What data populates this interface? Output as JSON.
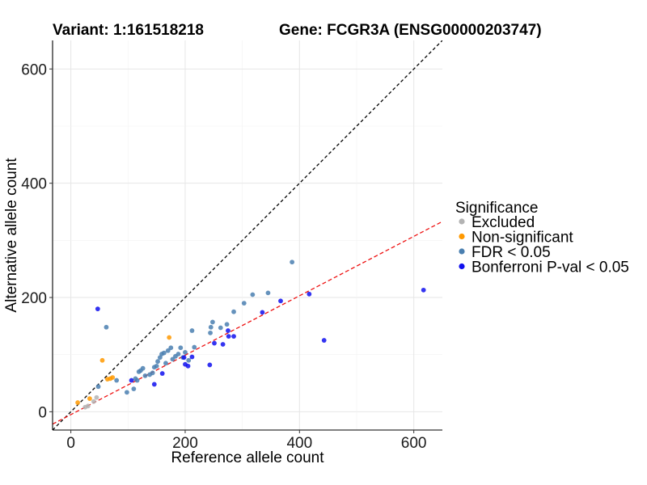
{
  "chart_data": {
    "type": "scatter",
    "title_left": "Variant: 1:161518218",
    "title_right": "Gene: FCGR3A (ENSG00000203747)",
    "xlabel": "Reference allele count",
    "ylabel": "Alternative allele count",
    "xlim": [
      -32,
      650
    ],
    "ylim": [
      -32,
      650
    ],
    "xticks": [
      0,
      200,
      400,
      600
    ],
    "yticks": [
      0,
      200,
      400,
      600
    ],
    "grid": true,
    "legend_position": "right",
    "legend_title": "Significance",
    "reference_lines": [
      {
        "name": "identity",
        "slope": 1,
        "intercept": 0,
        "color": "#000000",
        "dash": "4,3"
      },
      {
        "name": "fit",
        "slope": 0.52,
        "intercept": -5,
        "color": "#ee1111",
        "dash": "5,3"
      }
    ],
    "series": [
      {
        "name": "Excluded",
        "color": "#b3b3b3",
        "points": [
          [
            25,
            8
          ],
          [
            30,
            10
          ],
          [
            40,
            18
          ],
          [
            45,
            25
          ]
        ]
      },
      {
        "name": "Non-significant",
        "color": "#ff9900",
        "points": [
          [
            12,
            16
          ],
          [
            33,
            23
          ],
          [
            55,
            90
          ],
          [
            64,
            57
          ],
          [
            69,
            58
          ],
          [
            73,
            60
          ],
          [
            172,
            130
          ]
        ]
      },
      {
        "name": "FDR < 0.05",
        "color": "#4a7fb0",
        "points": [
          [
            48,
            44
          ],
          [
            62,
            148
          ],
          [
            80,
            55
          ],
          [
            98,
            34
          ],
          [
            110,
            40
          ],
          [
            113,
            58
          ],
          [
            116,
            55
          ],
          [
            119,
            70
          ],
          [
            122,
            72
          ],
          [
            126,
            76
          ],
          [
            130,
            63
          ],
          [
            138,
            65
          ],
          [
            143,
            68
          ],
          [
            146,
            78
          ],
          [
            150,
            80
          ],
          [
            152,
            88
          ],
          [
            156,
            95
          ],
          [
            159,
            101
          ],
          [
            163,
            103
          ],
          [
            166,
            85
          ],
          [
            170,
            107
          ],
          [
            175,
            112
          ],
          [
            178,
            92
          ],
          [
            183,
            97
          ],
          [
            188,
            101
          ],
          [
            192,
            112
          ],
          [
            196,
            95
          ],
          [
            200,
            104
          ],
          [
            206,
            90
          ],
          [
            212,
            142
          ],
          [
            216,
            113
          ],
          [
            244,
            138
          ],
          [
            245,
            148
          ],
          [
            248,
            157
          ],
          [
            262,
            147
          ],
          [
            273,
            153
          ],
          [
            285,
            175
          ],
          [
            303,
            190
          ],
          [
            318,
            205
          ],
          [
            345,
            208
          ],
          [
            387,
            262
          ]
        ]
      },
      {
        "name": "Bonferroni P-val < 0.05",
        "color": "#1010ee",
        "points": [
          [
            47,
            180
          ],
          [
            106,
            55
          ],
          [
            146,
            48
          ],
          [
            160,
            67
          ],
          [
            198,
            95
          ],
          [
            200,
            83
          ],
          [
            205,
            80
          ],
          [
            212,
            96
          ],
          [
            243,
            82
          ],
          [
            251,
            120
          ],
          [
            266,
            118
          ],
          [
            275,
            142
          ],
          [
            276,
            132
          ],
          [
            285,
            132
          ],
          [
            335,
            174
          ],
          [
            367,
            194
          ],
          [
            417,
            206
          ],
          [
            443,
            125
          ],
          [
            617,
            213
          ]
        ]
      }
    ]
  }
}
